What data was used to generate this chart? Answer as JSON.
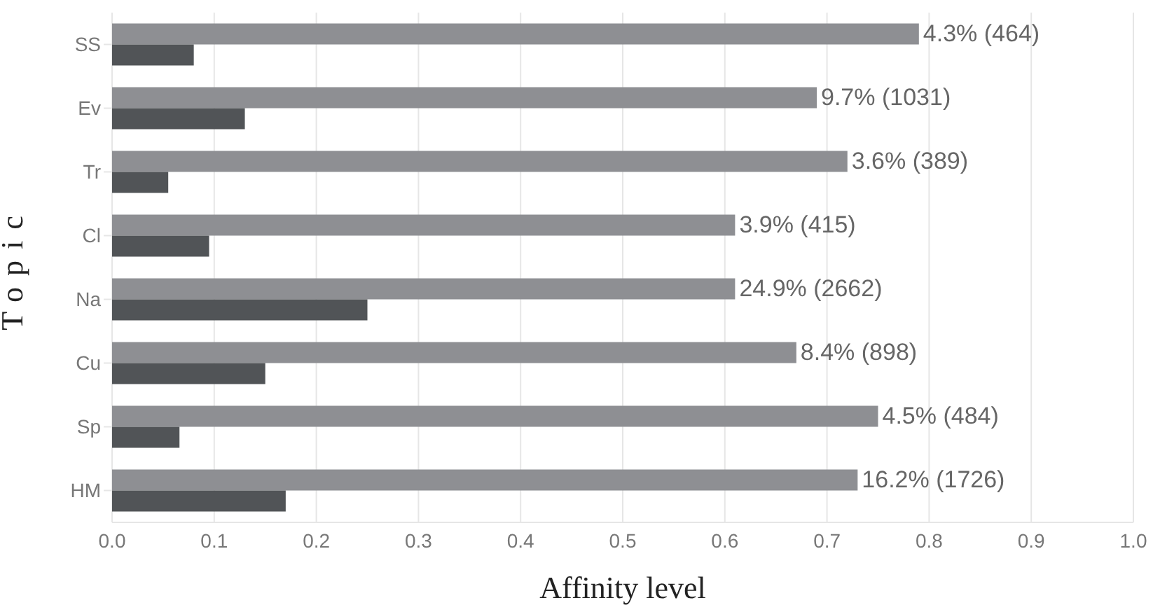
{
  "chart_data": {
    "type": "bar",
    "orientation": "horizontal",
    "xlabel": "Affinity level",
    "ylabel": "Topic",
    "categories": [
      "SS",
      "Ev",
      "Tr",
      "Cl",
      "Na",
      "Cu",
      "Sp",
      "HM"
    ],
    "series": [
      {
        "color": "#8e8f93",
        "values": [
          0.79,
          0.69,
          0.72,
          0.61,
          0.61,
          0.67,
          0.75,
          0.73
        ]
      },
      {
        "color": "#515457",
        "values": [
          0.08,
          0.13,
          0.055,
          0.095,
          0.25,
          0.15,
          0.066,
          0.17
        ]
      }
    ],
    "annotations": [
      {
        "text": "4.3% (464)",
        "x": 0.79,
        "y": "SS"
      },
      {
        "text": "9.7% (1031)",
        "x": 0.69,
        "y": "Ev"
      },
      {
        "text": "3.6% (389)",
        "x": 0.72,
        "y": "Tr"
      },
      {
        "text": "3.9% (415)",
        "x": 0.61,
        "y": "Cl"
      },
      {
        "text": "24.9% (2662)",
        "x": 0.61,
        "y": "Na"
      },
      {
        "text": "8.4% (898)",
        "x": 0.67,
        "y": "Cu"
      },
      {
        "text": "4.5% (484)",
        "x": 0.75,
        "y": "Sp"
      },
      {
        "text": "16.2% (1726)",
        "x": 0.73,
        "y": "HM"
      }
    ],
    "xlim": [
      0,
      1
    ],
    "xticks": [
      {
        "value": 0,
        "label": "0.0"
      },
      0.1,
      0.2,
      0.3,
      0.4,
      0.5,
      0.6,
      0.7,
      0.8,
      0.9,
      {
        "value": 1,
        "label": "1.0"
      }
    ],
    "grid": "x"
  }
}
